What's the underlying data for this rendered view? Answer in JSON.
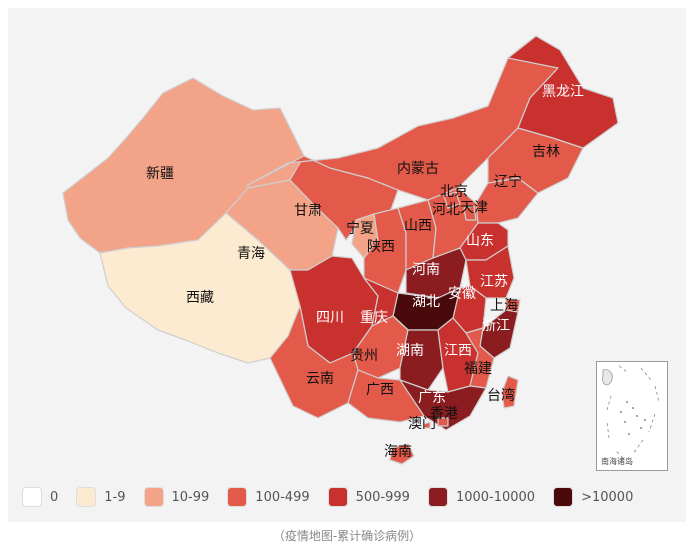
{
  "map": {
    "provinces": [
      {
        "id": "xinjiang",
        "label": "新疆",
        "color": "#f2a388"
      },
      {
        "id": "xizang",
        "label": "西藏",
        "color": "#fdebd1"
      },
      {
        "id": "qinghai",
        "label": "青海",
        "color": "#f2a388"
      },
      {
        "id": "gansu",
        "label": "甘肃",
        "color": "#e45a4a"
      },
      {
        "id": "neimenggu",
        "label": "内蒙古",
        "color": "#e45a4a"
      },
      {
        "id": "ningxia",
        "label": "宁夏",
        "color": "#f2a388"
      },
      {
        "id": "shaanxi",
        "label": "陕西",
        "color": "#e45a4a"
      },
      {
        "id": "shanxi",
        "label": "山西",
        "color": "#e45a4a"
      },
      {
        "id": "hebei",
        "label": "河北",
        "color": "#e45a4a"
      },
      {
        "id": "beijing",
        "label": "北京",
        "color": "#e45a4a"
      },
      {
        "id": "tianjin",
        "label": "天津",
        "color": "#e45a4a"
      },
      {
        "id": "liaoning",
        "label": "辽宁",
        "color": "#e45a4a"
      },
      {
        "id": "jilin",
        "label": "吉林",
        "color": "#e45a4a"
      },
      {
        "id": "heilongjiang",
        "label": "黑龙江",
        "color": "#c9312f"
      },
      {
        "id": "shandong",
        "label": "山东",
        "color": "#c9312f"
      },
      {
        "id": "henan",
        "label": "河南",
        "color": "#8b1d21"
      },
      {
        "id": "jiangsu",
        "label": "江苏",
        "color": "#c9312f"
      },
      {
        "id": "anhui",
        "label": "安徽",
        "color": "#c9312f"
      },
      {
        "id": "shanghai",
        "label": "上海",
        "color": "#e45a4a"
      },
      {
        "id": "hubei",
        "label": "湖北",
        "color": "#4a0a0c"
      },
      {
        "id": "zhejiang",
        "label": "浙江",
        "color": "#8b1d21"
      },
      {
        "id": "sichuan",
        "label": "四川",
        "color": "#c9312f"
      },
      {
        "id": "chongqing",
        "label": "重庆",
        "color": "#c9312f"
      },
      {
        "id": "guizhou",
        "label": "贵州",
        "color": "#e45a4a"
      },
      {
        "id": "hunan",
        "label": "湖南",
        "color": "#8b1d21"
      },
      {
        "id": "jiangxi",
        "label": "江西",
        "color": "#c9312f"
      },
      {
        "id": "fujian",
        "label": "福建",
        "color": "#e45a4a"
      },
      {
        "id": "yunnan",
        "label": "云南",
        "color": "#e45a4a"
      },
      {
        "id": "guangxi",
        "label": "广西",
        "color": "#e45a4a"
      },
      {
        "id": "guangdong",
        "label": "广东",
        "color": "#8b1d21"
      },
      {
        "id": "xianggang",
        "label": "香港",
        "color": "#e45a4a"
      },
      {
        "id": "aomen",
        "label": "澳门",
        "color": "#e45a4a"
      },
      {
        "id": "taiwan",
        "label": "台湾",
        "color": "#e45a4a"
      },
      {
        "id": "hainan",
        "label": "海南",
        "color": "#e45a4a"
      }
    ],
    "inset_label": "南海诸岛"
  },
  "legend": [
    {
      "label": "0",
      "color": "#ffffff"
    },
    {
      "label": "1-9",
      "color": "#fdebd1"
    },
    {
      "label": "10-99",
      "color": "#f2a388"
    },
    {
      "label": "100-499",
      "color": "#e45a4a"
    },
    {
      "label": "500-999",
      "color": "#c9312f"
    },
    {
      "label": "1000-10000",
      "color": "#8b1d21"
    },
    {
      "label": ">10000",
      "color": "#4a0a0c"
    }
  ],
  "caption": "（疫情地图-累计确诊病例）"
}
